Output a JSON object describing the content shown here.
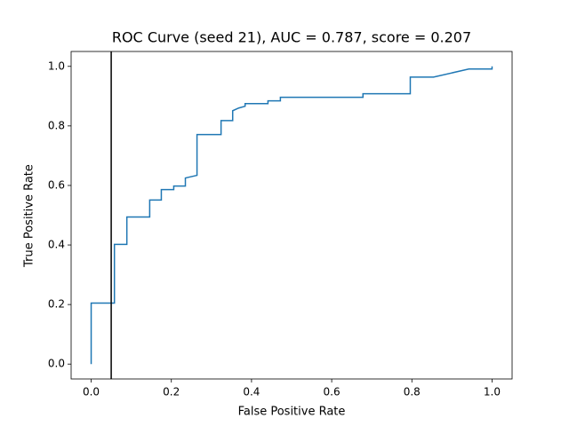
{
  "chart_data": {
    "type": "line",
    "title": "ROC Curve (seed 21), AUC = 0.787, score = 0.207",
    "x_label": "False Positive Rate",
    "y_label": "True Positive Rate",
    "x": [
      0,
      0,
      0.058,
      0.058,
      0.089,
      0.089,
      0.146,
      0.146,
      0.175,
      0.175,
      0.206,
      0.206,
      0.235,
      0.235,
      0.264,
      0.264,
      0.324,
      0.324,
      0.353,
      0.353,
      0.368,
      0.384,
      0.384,
      0.441,
      0.441,
      0.472,
      0.472,
      0.678,
      0.678,
      0.796,
      0.796,
      0.854,
      0.942,
      1.0,
      1.0
    ],
    "series": [
      {
        "color": "#1f77b4",
        "values": [
          0,
          0.205,
          0.205,
          0.402,
          0.402,
          0.494,
          0.494,
          0.551,
          0.551,
          0.586,
          0.586,
          0.598,
          0.598,
          0.625,
          0.634,
          0.771,
          0.771,
          0.818,
          0.818,
          0.851,
          0.86,
          0.866,
          0.875,
          0.875,
          0.884,
          0.884,
          0.896,
          0.896,
          0.908,
          0.908,
          0.964,
          0.964,
          0.991,
          0.991,
          1.0
        ]
      }
    ],
    "vline_x": 0.05,
    "vline_color": "#000000",
    "xlim": [
      -0.05,
      1.05
    ],
    "ylim": [
      -0.05,
      1.05
    ],
    "xticks": [
      {
        "value": 0,
        "label": "0.0"
      },
      0.2,
      0.4,
      0.6,
      0.8,
      {
        "value": 1,
        "label": "1.0"
      }
    ],
    "yticks": [
      {
        "value": 0,
        "label": "0.0"
      },
      0.2,
      0.4,
      0.6,
      0.8,
      {
        "value": 1,
        "label": "1.0"
      }
    ],
    "grid": false
  }
}
